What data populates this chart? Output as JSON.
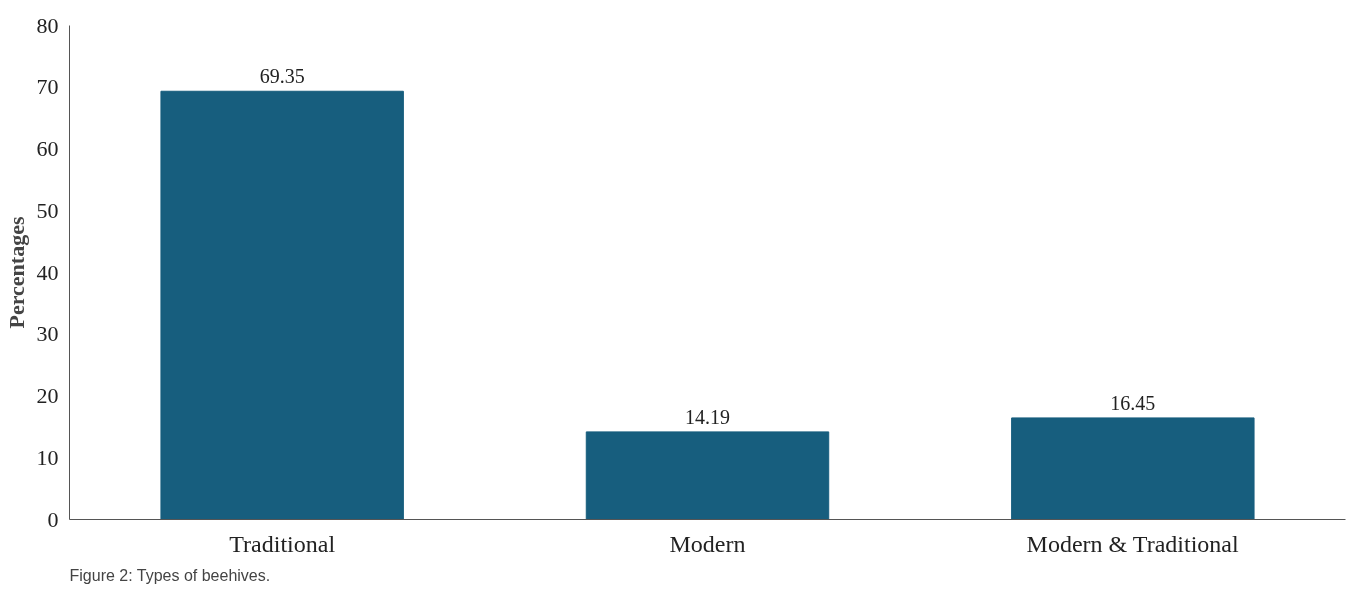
{
  "chart_data": {
    "type": "bar",
    "ylabel": "Percentages",
    "categories": [
      "Traditional",
      "Modern",
      "Modern & Traditional"
    ],
    "values": [
      69.35,
      14.19,
      16.45
    ],
    "color": "#175e7e",
    "ylim": [
      0,
      80
    ],
    "yticks": [
      0,
      10,
      20,
      30,
      40,
      50,
      60,
      70,
      80
    ],
    "grid": false,
    "data_labels": true,
    "annotations": [
      "Figure 2: Types of beehives."
    ]
  }
}
